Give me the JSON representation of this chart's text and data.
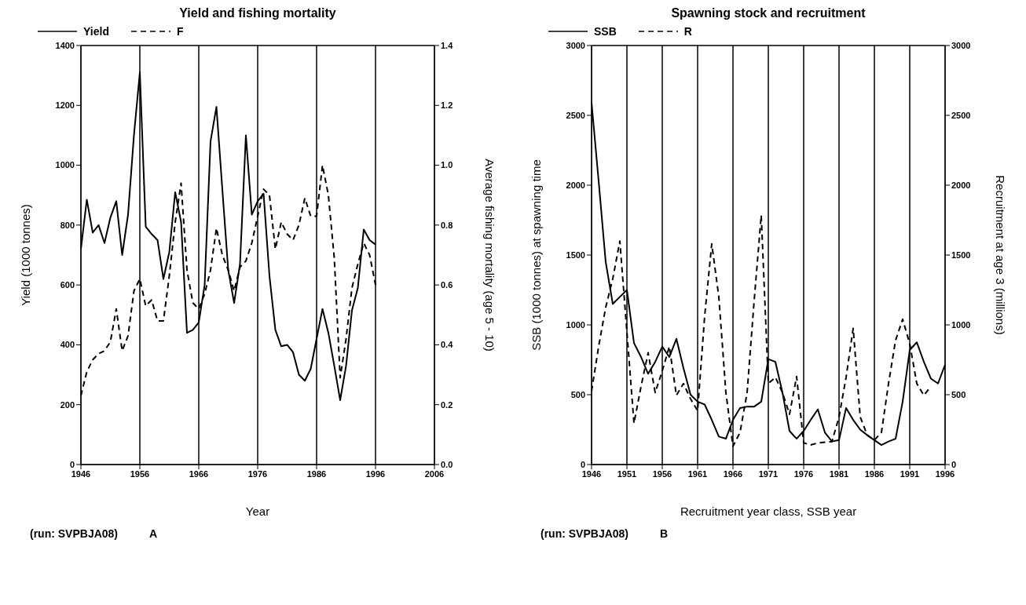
{
  "chart_data": [
    {
      "type": "line",
      "title": "Yield and fishing mortality",
      "xlabel": "Year",
      "ylabel": "Yield (1000 tonnes)",
      "y2label": "Average fishing mortality (age 5 - 10)",
      "annotations": [
        "(run: SVPBJA08)",
        "A"
      ],
      "x": [
        1946,
        1947,
        1948,
        1949,
        1950,
        1951,
        1952,
        1953,
        1954,
        1955,
        1956,
        1957,
        1958,
        1959,
        1960,
        1961,
        1962,
        1963,
        1964,
        1965,
        1966,
        1967,
        1968,
        1969,
        1970,
        1971,
        1972,
        1973,
        1974,
        1975,
        1976,
        1977,
        1978,
        1979,
        1980,
        1981,
        1982,
        1983,
        1984,
        1985,
        1986,
        1987,
        1988,
        1989,
        1990,
        1991,
        1992,
        1993,
        1994,
        1995,
        1996
      ],
      "series": [
        {
          "name": "Yield",
          "color": "#000000",
          "line_style": "solid",
          "values": [
            720,
            885,
            775,
            800,
            740,
            825,
            880,
            700,
            835,
            1100,
            1310,
            795,
            770,
            750,
            620,
            710,
            910,
            810,
            440,
            450,
            475,
            600,
            1080,
            1195,
            920,
            650,
            540,
            670,
            1100,
            835,
            880,
            905,
            630,
            450,
            395,
            400,
            375,
            300,
            280,
            320,
            420,
            520,
            440,
            330,
            215,
            330,
            515,
            590,
            785,
            750,
            735
          ]
        },
        {
          "name": "F",
          "color": "#000000",
          "line_style": "dashed",
          "axis": "y2",
          "values": [
            0.23,
            0.31,
            0.35,
            0.37,
            0.38,
            0.41,
            0.52,
            0.38,
            0.43,
            0.58,
            0.62,
            0.53,
            0.55,
            0.48,
            0.48,
            0.63,
            0.81,
            0.94,
            0.65,
            0.54,
            0.52,
            0.57,
            0.65,
            0.79,
            0.7,
            0.65,
            0.58,
            0.66,
            0.68,
            0.74,
            0.83,
            0.92,
            0.9,
            0.72,
            0.81,
            0.77,
            0.75,
            0.8,
            0.89,
            0.83,
            0.83,
            1.0,
            0.9,
            0.69,
            0.29,
            0.42,
            0.59,
            0.67,
            0.74,
            0.7,
            0.6
          ]
        }
      ],
      "xlim": [
        1946,
        2006
      ],
      "xticks": [
        1946,
        1956,
        1966,
        1976,
        1986,
        1996,
        2006
      ],
      "ylim": [
        0,
        1400
      ],
      "yticks": [
        0,
        200,
        400,
        600,
        800,
        1000,
        1200,
        1400
      ],
      "y2lim": [
        0,
        1.4
      ],
      "y2ticks": [
        {
          "value": 0,
          "label": "0.0"
        },
        0.2,
        0.4,
        0.6,
        0.8,
        {
          "value": 1,
          "label": "1.0"
        },
        1.2,
        1.4
      ],
      "grid": true,
      "legend": "top left",
      "marker": "none"
    },
    {
      "type": "line",
      "title": "Spawning stock and recruitment",
      "xlabel": "Recruitment year class, SSB year",
      "ylabel": "SSB (1000 tonnes) at spawning time",
      "y2label": "Recruitment at age 3 (millions)",
      "annotations": [
        "(run: SVPBJA08)",
        "B"
      ],
      "x": [
        1946,
        1947,
        1948,
        1949,
        1950,
        1951,
        1952,
        1953,
        1954,
        1955,
        1956,
        1957,
        1958,
        1959,
        1960,
        1961,
        1962,
        1963,
        1964,
        1965,
        1966,
        1967,
        1968,
        1969,
        1970,
        1971,
        1972,
        1973,
        1974,
        1975,
        1976,
        1977,
        1978,
        1979,
        1980,
        1981,
        1982,
        1983,
        1984,
        1985,
        1986,
        1987,
        1988,
        1989,
        1990,
        1991,
        1992,
        1993,
        1994,
        1995,
        1996
      ],
      "series": [
        {
          "name": "SSB",
          "color": "#000000",
          "line_style": "solid",
          "values": [
            2590,
            2030,
            1450,
            1150,
            1200,
            1250,
            870,
            770,
            650,
            735,
            845,
            770,
            900,
            690,
            500,
            450,
            430,
            320,
            200,
            185,
            320,
            405,
            415,
            415,
            450,
            755,
            735,
            515,
            240,
            185,
            240,
            320,
            395,
            230,
            165,
            175,
            405,
            320,
            250,
            210,
            175,
            140,
            165,
            185,
            450,
            820,
            875,
            735,
            615,
            580,
            715
          ]
        },
        {
          "name": "R",
          "color": "#000000",
          "line_style": "dashed",
          "axis": "y2",
          "x": [
            1946,
            1947,
            1948,
            1949,
            1950,
            1951,
            1952,
            1953,
            1954,
            1955,
            1956,
            1957,
            1958,
            1959,
            1960,
            1961,
            1962,
            1963,
            1964,
            1965,
            1966,
            1967,
            1968,
            1969,
            1970,
            1971,
            1972,
            1973,
            1974,
            1975,
            1976,
            1977,
            1978,
            1979,
            1980,
            1981,
            1982,
            1983,
            1984,
            1985,
            1986,
            1987,
            1988,
            1989,
            1990,
            1991,
            1992,
            1993,
            1994
          ],
          "values": [
            525,
            845,
            1125,
            1330,
            1600,
            950,
            295,
            560,
            800,
            515,
            670,
            845,
            495,
            580,
            470,
            385,
            1065,
            1580,
            1200,
            515,
            130,
            230,
            515,
            1175,
            1785,
            580,
            625,
            515,
            360,
            630,
            155,
            140,
            155,
            160,
            165,
            340,
            625,
            975,
            340,
            210,
            175,
            230,
            580,
            890,
            1040,
            865,
            580,
            495,
            560
          ]
        }
      ],
      "xlim": [
        1946,
        1996
      ],
      "xticks": [
        1946,
        1951,
        1956,
        1961,
        1966,
        1971,
        1976,
        1981,
        1986,
        1991,
        1996
      ],
      "ylim": [
        0,
        3000
      ],
      "yticks": [
        0,
        500,
        1000,
        1500,
        2000,
        2500,
        3000
      ],
      "y2lim": [
        0,
        3000
      ],
      "y2ticks": [
        0,
        500,
        1000,
        1500,
        2000,
        2500,
        3000
      ],
      "grid": true,
      "legend": "top left",
      "marker": "none"
    }
  ]
}
